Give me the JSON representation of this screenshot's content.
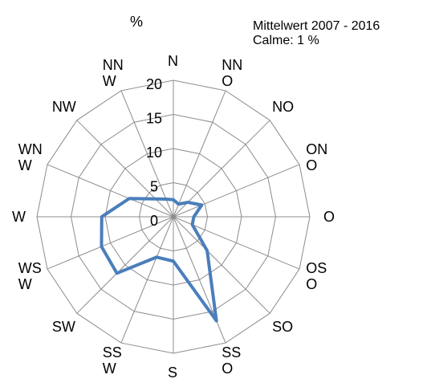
{
  "chart_data": {
    "type": "radar",
    "title": "%",
    "annotations": [
      "Mittelwert 2007 - 2016",
      "Calme: 1 %"
    ],
    "categories": [
      "N",
      "NNO",
      "NO",
      "ONO",
      "O",
      "OSO",
      "SO",
      "SSO",
      "S",
      "SSW",
      "SW",
      "WSW",
      "W",
      "WNW",
      "NW",
      "NNW"
    ],
    "series": [
      {
        "name": "Mittelwert 2007 - 2016",
        "color": "#4a7ebb",
        "values": [
          2.5,
          2,
          3,
          4.5,
          3,
          3,
          7,
          16.5,
          6.5,
          6.4,
          11.7,
          11.4,
          10.5,
          7,
          3.7,
          2.8
        ]
      }
    ],
    "ylim": [
      0,
      20
    ],
    "yticks": [
      0,
      5,
      10,
      15,
      20
    ],
    "grid": true
  }
}
